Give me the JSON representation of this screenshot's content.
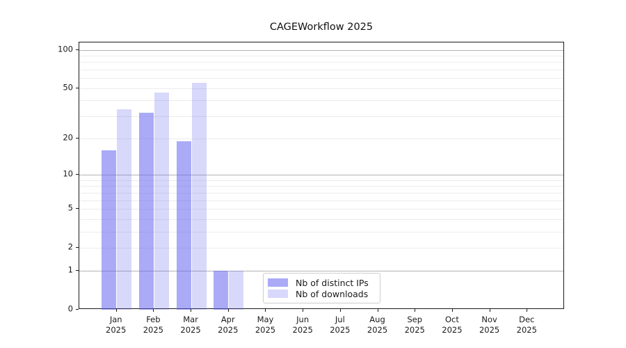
{
  "title": "CAGEWorkflow 2025",
  "year_label": "2025",
  "legend": {
    "items": [
      {
        "label": "Nb of distinct IPs",
        "color": "rgba(100,100,240,0.55)"
      },
      {
        "label": "Nb of downloads",
        "color": "rgba(100,100,240,0.25)"
      }
    ]
  },
  "chart_data": {
    "type": "bar",
    "title": "CAGEWorkflow 2025",
    "categories": [
      "Jan",
      "Feb",
      "Mar",
      "Apr",
      "May",
      "Jun",
      "Jul",
      "Aug",
      "Sep",
      "Oct",
      "Nov",
      "Dec"
    ],
    "year": "2025",
    "series": [
      {
        "name": "Nb of distinct IPs",
        "color": "rgba(100,100,240,0.55)",
        "values": [
          16,
          32,
          19,
          1,
          0,
          0,
          0,
          0,
          0,
          0,
          0,
          0
        ]
      },
      {
        "name": "Nb of downloads",
        "color": "rgba(100,100,240,0.25)",
        "values": [
          34,
          46,
          55,
          1,
          0,
          0,
          0,
          0,
          0,
          0,
          0,
          0
        ]
      }
    ],
    "xlabel": "",
    "ylabel": "",
    "yscale": "log10(1+v)",
    "ylim": [
      0,
      114
    ],
    "yticks": [
      0,
      1,
      2,
      5,
      10,
      20,
      50,
      100
    ],
    "grid": {
      "major_values": [
        1,
        10,
        100
      ],
      "minor_values": [
        2,
        3,
        4,
        5,
        6,
        7,
        8,
        9,
        20,
        30,
        40,
        50,
        60,
        70,
        80,
        90
      ]
    },
    "legend_position": "lower center"
  }
}
